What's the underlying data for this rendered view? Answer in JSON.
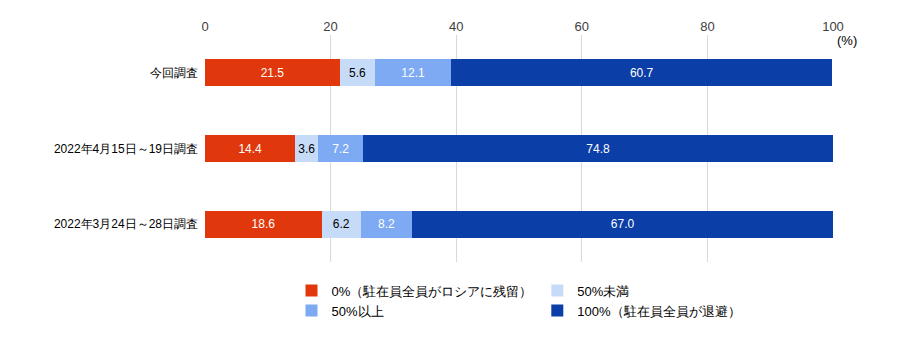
{
  "chart_data": {
    "type": "bar",
    "orientation": "horizontal",
    "stacked": true,
    "data_labels": true,
    "grid": true,
    "legend": "bottom",
    "x_label": "(%)",
    "categories": [
      "今回調査",
      "2022年4月15日～19日調査",
      "2022年3月24日～28日調査"
    ],
    "series": [
      {
        "name": "0%（駐在員全員がロシアに残留）",
        "color": "#e0380c",
        "values": [
          21.5,
          14.4,
          18.6
        ]
      },
      {
        "name": "50%未満",
        "color": "#c6dbf8",
        "values": [
          5.6,
          3.6,
          6.2
        ]
      },
      {
        "name": "50%以上",
        "color": "#7daaf2",
        "values": [
          12.1,
          7.2,
          8.2
        ]
      },
      {
        "name": "100%（駐在員全員が退避）",
        "color": "#0b3ea6",
        "values": [
          60.7,
          74.8,
          67.0
        ],
        "value_labels": [
          "60.7",
          "74.8",
          "67.0"
        ]
      }
    ],
    "xlim": [
      0,
      100
    ],
    "xticks": [
      0,
      20,
      40,
      60,
      80,
      100
    ]
  }
}
